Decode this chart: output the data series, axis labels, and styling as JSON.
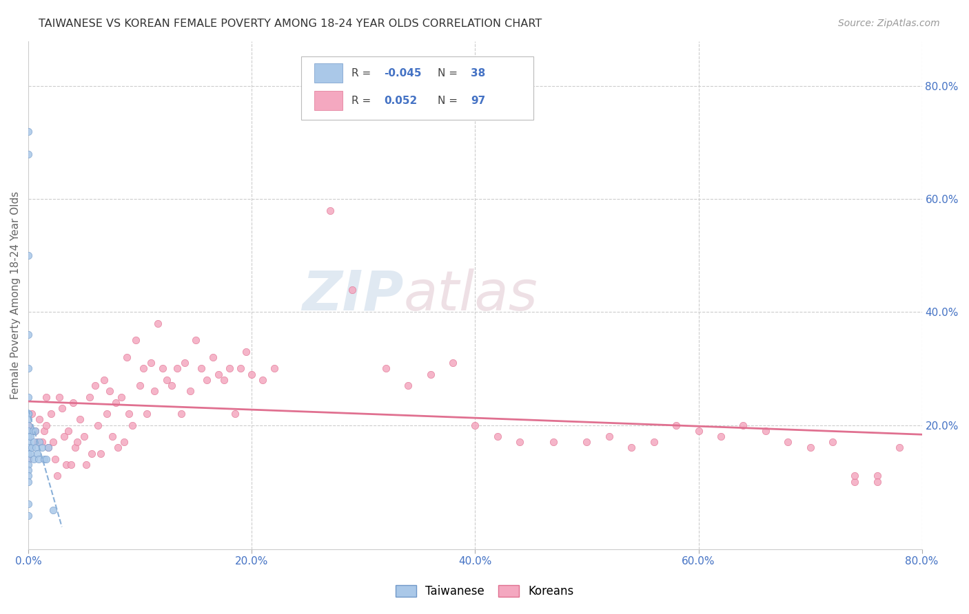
{
  "title": "TAIWANESE VS KOREAN FEMALE POVERTY AMONG 18-24 YEAR OLDS CORRELATION CHART",
  "source": "Source: ZipAtlas.com",
  "ylabel": "Female Poverty Among 18-24 Year Olds",
  "xlim": [
    0.0,
    0.8
  ],
  "ylim": [
    -0.02,
    0.88
  ],
  "xticks": [
    0.0,
    0.2,
    0.4,
    0.6,
    0.8
  ],
  "yticks_right": [
    0.2,
    0.4,
    0.6,
    0.8
  ],
  "xticklabels": [
    "0.0%",
    "20.0%",
    "40.0%",
    "60.0%",
    "80.0%"
  ],
  "yticklabels_right": [
    "20.0%",
    "40.0%",
    "60.0%",
    "80.0%"
  ],
  "taiwanese_color": "#aac8e8",
  "korean_color": "#f4a8c0",
  "taiwanese_edge": "#7098c8",
  "korean_edge": "#e07090",
  "trend_taiwanese_color": "#8ab0d8",
  "trend_korean_color": "#e07090",
  "background_color": "#ffffff",
  "grid_color": "#cccccc",
  "axis_label_color": "#4472c4",
  "title_color": "#333333",
  "marker_size": 55,
  "taiwanese_x": [
    0.0,
    0.0,
    0.0,
    0.0,
    0.0,
    0.0,
    0.0,
    0.0,
    0.0,
    0.0,
    0.0,
    0.0,
    0.0,
    0.0,
    0.0,
    0.0,
    0.0,
    0.0,
    0.0,
    0.0,
    0.0,
    0.0,
    0.002,
    0.002,
    0.003,
    0.004,
    0.005,
    0.005,
    0.006,
    0.007,
    0.008,
    0.009,
    0.01,
    0.012,
    0.014,
    0.016,
    0.018,
    0.022
  ],
  "taiwanese_y": [
    0.72,
    0.68,
    0.5,
    0.36,
    0.3,
    0.25,
    0.22,
    0.22,
    0.21,
    0.2,
    0.19,
    0.18,
    0.17,
    0.16,
    0.15,
    0.14,
    0.13,
    0.12,
    0.11,
    0.1,
    0.06,
    0.04,
    0.18,
    0.15,
    0.16,
    0.19,
    0.17,
    0.14,
    0.19,
    0.16,
    0.15,
    0.14,
    0.17,
    0.16,
    0.14,
    0.14,
    0.16,
    0.05
  ],
  "korean_x": [
    0.0,
    0.0,
    0.003,
    0.006,
    0.008,
    0.01,
    0.012,
    0.014,
    0.016,
    0.016,
    0.018,
    0.02,
    0.022,
    0.024,
    0.026,
    0.028,
    0.03,
    0.032,
    0.034,
    0.036,
    0.038,
    0.04,
    0.042,
    0.044,
    0.046,
    0.05,
    0.052,
    0.055,
    0.057,
    0.06,
    0.062,
    0.065,
    0.068,
    0.07,
    0.073,
    0.075,
    0.078,
    0.08,
    0.083,
    0.086,
    0.088,
    0.09,
    0.093,
    0.096,
    0.1,
    0.103,
    0.106,
    0.11,
    0.113,
    0.116,
    0.12,
    0.124,
    0.128,
    0.133,
    0.137,
    0.14,
    0.145,
    0.15,
    0.155,
    0.16,
    0.165,
    0.17,
    0.175,
    0.18,
    0.185,
    0.19,
    0.195,
    0.2,
    0.21,
    0.22,
    0.27,
    0.29,
    0.32,
    0.34,
    0.36,
    0.38,
    0.4,
    0.42,
    0.44,
    0.47,
    0.5,
    0.52,
    0.54,
    0.56,
    0.58,
    0.6,
    0.62,
    0.64,
    0.66,
    0.68,
    0.7,
    0.72,
    0.74,
    0.74,
    0.76,
    0.76,
    0.78
  ],
  "korean_y": [
    0.2,
    0.14,
    0.22,
    0.19,
    0.17,
    0.21,
    0.17,
    0.19,
    0.25,
    0.2,
    0.16,
    0.22,
    0.17,
    0.14,
    0.11,
    0.25,
    0.23,
    0.18,
    0.13,
    0.19,
    0.13,
    0.24,
    0.16,
    0.17,
    0.21,
    0.18,
    0.13,
    0.25,
    0.15,
    0.27,
    0.2,
    0.15,
    0.28,
    0.22,
    0.26,
    0.18,
    0.24,
    0.16,
    0.25,
    0.17,
    0.32,
    0.22,
    0.2,
    0.35,
    0.27,
    0.3,
    0.22,
    0.31,
    0.26,
    0.38,
    0.3,
    0.28,
    0.27,
    0.3,
    0.22,
    0.31,
    0.26,
    0.35,
    0.3,
    0.28,
    0.32,
    0.29,
    0.28,
    0.3,
    0.22,
    0.3,
    0.33,
    0.29,
    0.28,
    0.3,
    0.58,
    0.44,
    0.3,
    0.27,
    0.29,
    0.31,
    0.2,
    0.18,
    0.17,
    0.17,
    0.17,
    0.18,
    0.16,
    0.17,
    0.2,
    0.19,
    0.18,
    0.2,
    0.19,
    0.17,
    0.16,
    0.17,
    0.1,
    0.11,
    0.11,
    0.1,
    0.16
  ]
}
